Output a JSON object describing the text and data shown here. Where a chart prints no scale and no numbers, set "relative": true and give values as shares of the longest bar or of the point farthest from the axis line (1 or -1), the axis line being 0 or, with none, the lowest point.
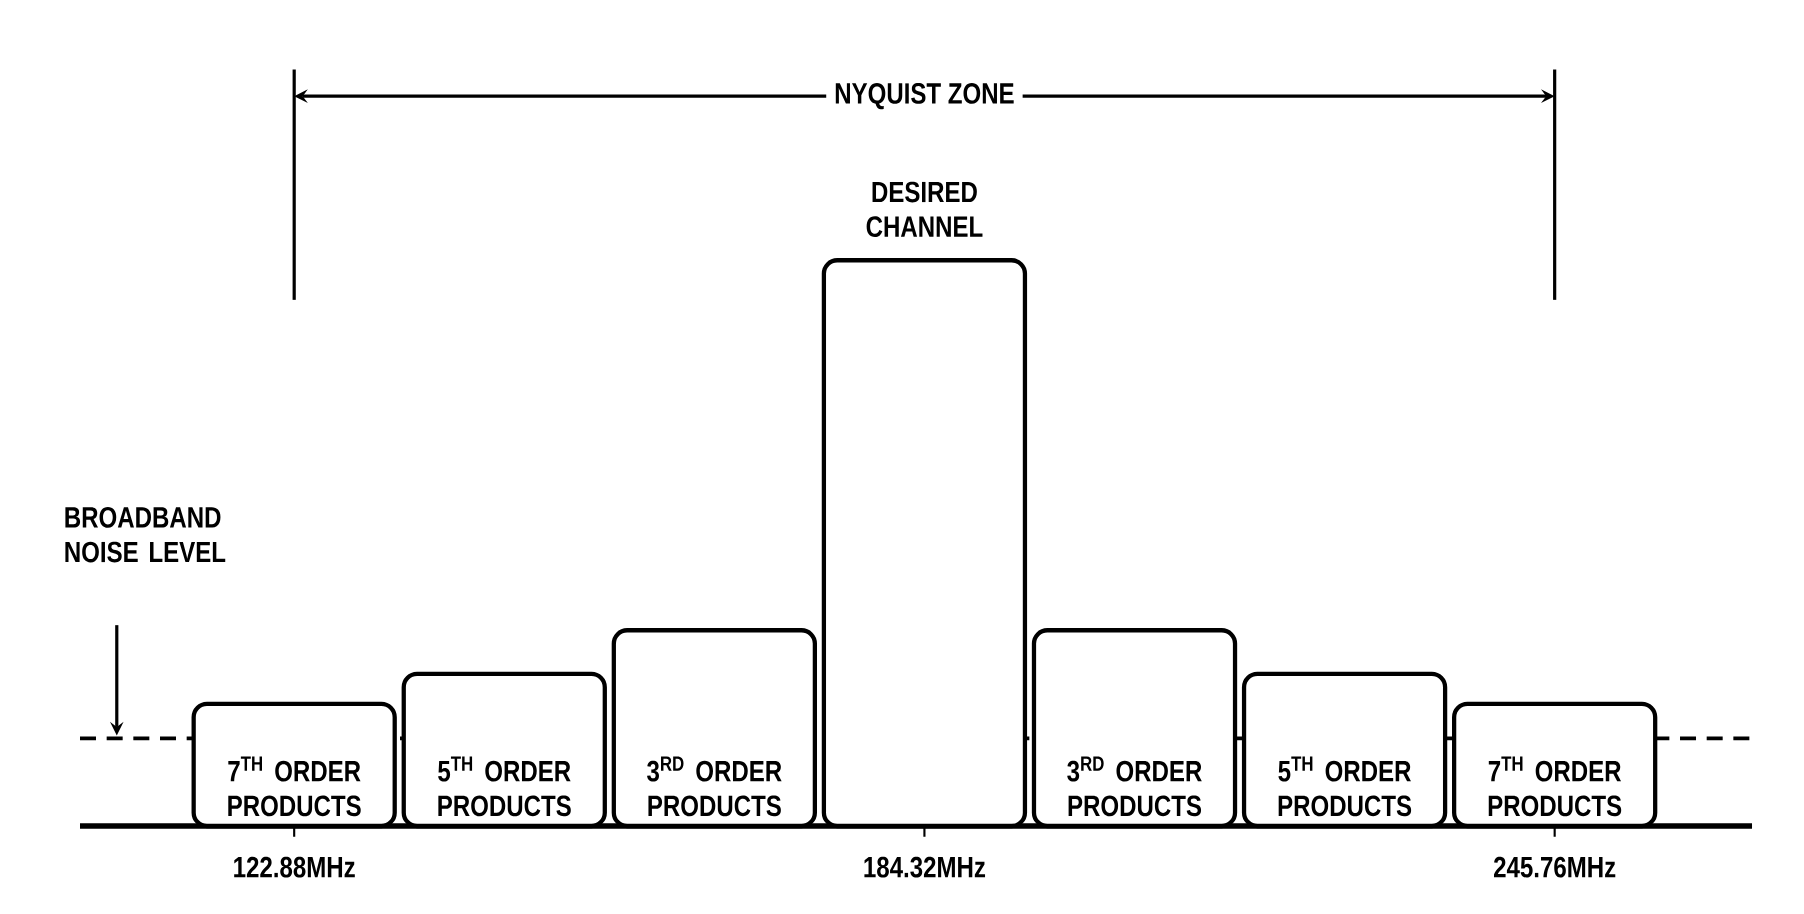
{
  "chart_data": {
    "type": "bar",
    "relative": true,
    "x": [
      122.88,
      143.36,
      163.84,
      184.32,
      204.8,
      225.28,
      245.76
    ],
    "values": [
      0.216,
      0.269,
      0.346,
      1,
      0.346,
      0.269,
      0.216
    ],
    "color": "#000000",
    "xlim": [
      102,
      265
    ],
    "xticks": [
      {
        "value": 122.88,
        "label": "122.88MHz"
      },
      {
        "value": 184.32,
        "label": "184.32MHz"
      },
      {
        "value": 245.76,
        "label": "245.76MHz"
      }
    ],
    "ref_lines": [
      {
        "axis": "y",
        "value": 0.155,
        "label": "BROADBAND NOISE LEVEL",
        "line_style": "dashed"
      }
    ],
    "annotations": [
      "NYQUIST ZONE",
      "DESIRED CHANNEL",
      "7$^{TH}$ ORDER PRODUCTS",
      "5$^{TH}$ ORDER PRODUCTS",
      "3$^{RD}$ ORDER PRODUCTS",
      "3$^{RD}$ ORDER PRODUCTS",
      "5$^{TH}$ ORDER PRODUCTS",
      "7$^{TH}$ ORDER PRODUCTS"
    ],
    "grid": false
  }
}
